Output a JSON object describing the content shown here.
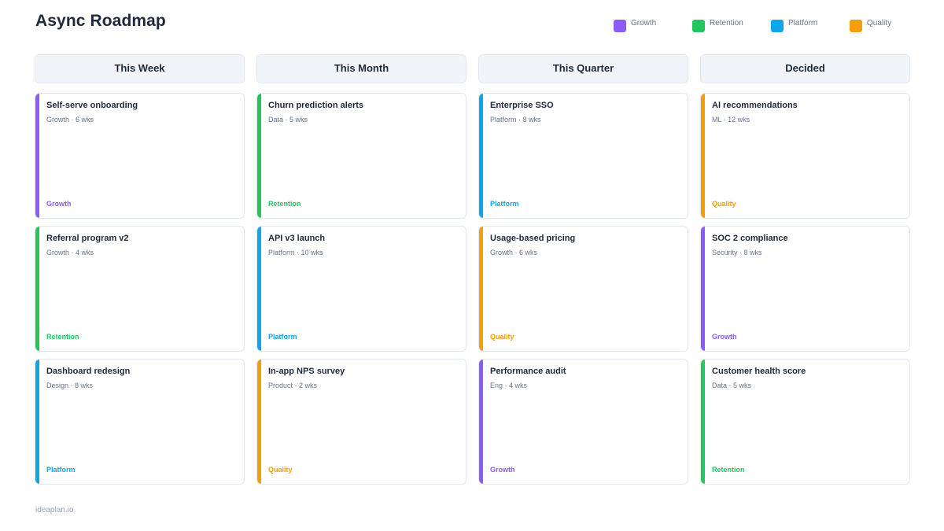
{
  "header": {
    "title": "Async Roadmap"
  },
  "colors": {
    "Growth": "#8b5cf6",
    "Retention": "#22c55e",
    "Platform": "#0ea5e9",
    "Quality": "#f59e0b"
  },
  "legend": [
    {
      "label": "Growth",
      "color": "#8b5cf6"
    },
    {
      "label": "Retention",
      "color": "#22c55e"
    },
    {
      "label": "Platform",
      "color": "#0ea5e9"
    },
    {
      "label": "Quality",
      "color": "#f59e0b"
    }
  ],
  "columns": [
    {
      "label": "This Week",
      "cards": [
        {
          "title": "Self-serve onboarding",
          "meta": "Growth · 6 wks",
          "tag": "Growth"
        },
        {
          "title": "Referral program v2",
          "meta": "Growth · 4 wks",
          "tag": "Retention"
        },
        {
          "title": "Dashboard redesign",
          "meta": "Design · 8 wks",
          "tag": "Platform"
        }
      ]
    },
    {
      "label": "This Month",
      "cards": [
        {
          "title": "Churn prediction alerts",
          "meta": "Data · 5 wks",
          "tag": "Retention"
        },
        {
          "title": "API v3 launch",
          "meta": "Platform · 10 wks",
          "tag": "Platform"
        },
        {
          "title": "In-app NPS survey",
          "meta": "Product · 2 wks",
          "tag": "Quality"
        }
      ]
    },
    {
      "label": "This Quarter",
      "cards": [
        {
          "title": "Enterprise SSO",
          "meta": "Platform · 8 wks",
          "tag": "Platform"
        },
        {
          "title": "Usage-based pricing",
          "meta": "Growth · 6 wks",
          "tag": "Quality"
        },
        {
          "title": "Performance audit",
          "meta": "Eng · 4 wks",
          "tag": "Growth"
        }
      ]
    },
    {
      "label": "Decided",
      "cards": [
        {
          "title": "AI recommendations",
          "meta": "ML · 12 wks",
          "tag": "Quality"
        },
        {
          "title": "SOC 2 compliance",
          "meta": "Security · 8 wks",
          "tag": "Growth"
        },
        {
          "title": "Customer health score",
          "meta": "Data · 5 wks",
          "tag": "Retention"
        }
      ]
    }
  ],
  "footer": {
    "text": "ideaplan.io"
  }
}
